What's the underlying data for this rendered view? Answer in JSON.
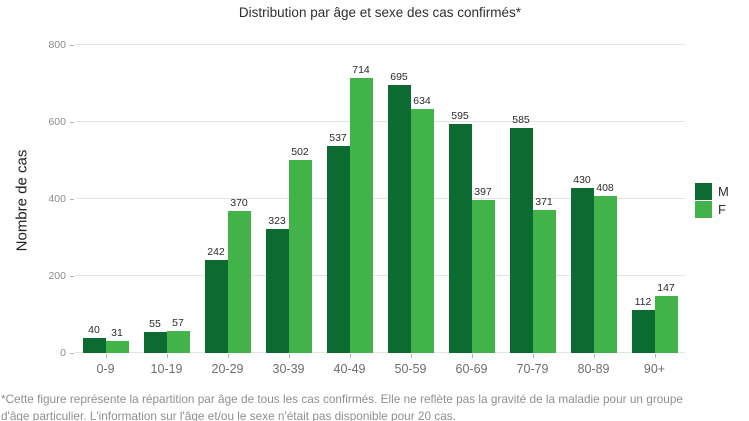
{
  "chart_data": {
    "type": "bar",
    "title": "Distribution par âge et sexe des cas confirmés*",
    "xlabel": "",
    "ylabel": "Nombre de cas",
    "categories": [
      "0-9",
      "10-19",
      "20-29",
      "30-39",
      "40-49",
      "50-59",
      "60-69",
      "70-79",
      "80-89",
      "90+"
    ],
    "series": [
      {
        "name": "M",
        "color": "#0c6b30",
        "values": [
          40,
          55,
          242,
          323,
          537,
          695,
          595,
          585,
          430,
          112
        ]
      },
      {
        "name": "F",
        "color": "#41b349",
        "values": [
          31,
          57,
          370,
          502,
          714,
          634,
          397,
          371,
          408,
          147
        ]
      }
    ],
    "ylim": [
      0,
      800
    ],
    "yticks": [
      0,
      200,
      400,
      600,
      800
    ],
    "grid": true,
    "legend_position": "right",
    "value_labels": true
  },
  "footnote": {
    "line1": "*Cette figure représente la répartition par âge de tous les cas confirmés. Elle ne reflète pas la gravité de la maladie pour un groupe",
    "line2": "d'âge particulier. L'information sur l'âge et/ou le sexe n'était pas disponible pour 20 cas."
  },
  "colors": {
    "male": "#0c6b30",
    "female": "#41b349",
    "grid": "#e4e4e4",
    "tick": "#b3b3b3",
    "axis_text": "#8c8c8c",
    "value_text": "#2b2b2b",
    "footnote_text": "#8f8f8f"
  }
}
